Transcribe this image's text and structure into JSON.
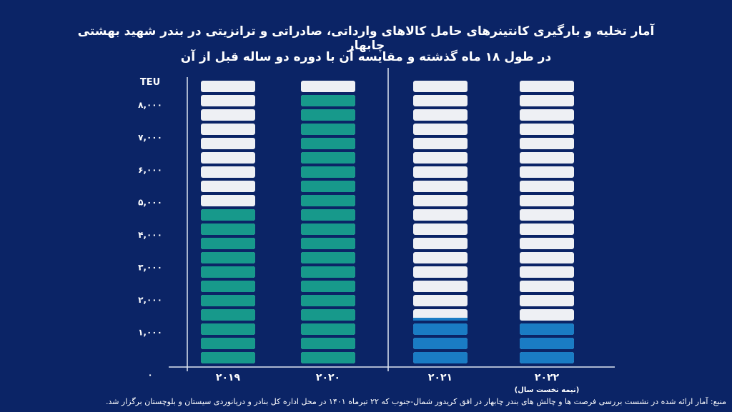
{
  "chart_data": {
    "type": "bar",
    "style": "pictogram stacked blocks",
    "title": "آمار تخلیه و بارگیری کانتینرهای حامل کالاهای وارداتی، صادراتی و ترانزیتی در بندر شهید بهشتی چابهار",
    "subtitle": "در طول ۱۸ ماه گذشته و مقایسه آن با دوره دو ساله قبل از آن",
    "ylabel": "TEU",
    "ylim": [
      0,
      9000
    ],
    "yticks": [
      {
        "value": 0,
        "label": "۰"
      },
      {
        "value": 1000,
        "label": "۱,۰۰۰"
      },
      {
        "value": 2000,
        "label": "۲,۰۰۰"
      },
      {
        "value": 3000,
        "label": "۳,۰۰۰"
      },
      {
        "value": 4000,
        "label": "۴,۰۰۰"
      },
      {
        "value": 5000,
        "label": "۵,۰۰۰"
      },
      {
        "value": 6000,
        "label": "۶,۰۰۰"
      },
      {
        "value": 7000,
        "label": "۷,۰۰۰"
      },
      {
        "value": 8000,
        "label": "۸,۰۰۰"
      }
    ],
    "categories": [
      "۲۰۱۹",
      "۲۰۲۰",
      "۲۰۲۱",
      "۲۰۲۲"
    ],
    "category_notes": [
      "",
      "",
      "",
      "(نیمه نخست سال)"
    ],
    "values": [
      4850,
      8350,
      1450,
      1320
    ],
    "bar_colors": [
      "#17998b",
      "#17998b",
      "#1a7cc4",
      "#1a7cc4"
    ],
    "empty_color": "#eef0f4",
    "grid": false
  },
  "colors": {
    "background": "#0b2466",
    "axis": "#dfe6f2"
  },
  "source": "منبع: آمار ارائه شده در نشست بررسی فرصت ها و چالش های بندر چابهار در افق کریدور شمال-جنوب که ۲۲ تیرماه ۱۴۰۱ در محل اداره کل بنادر و دریانوردی سیستان و بلوچستان برگزار شد."
}
